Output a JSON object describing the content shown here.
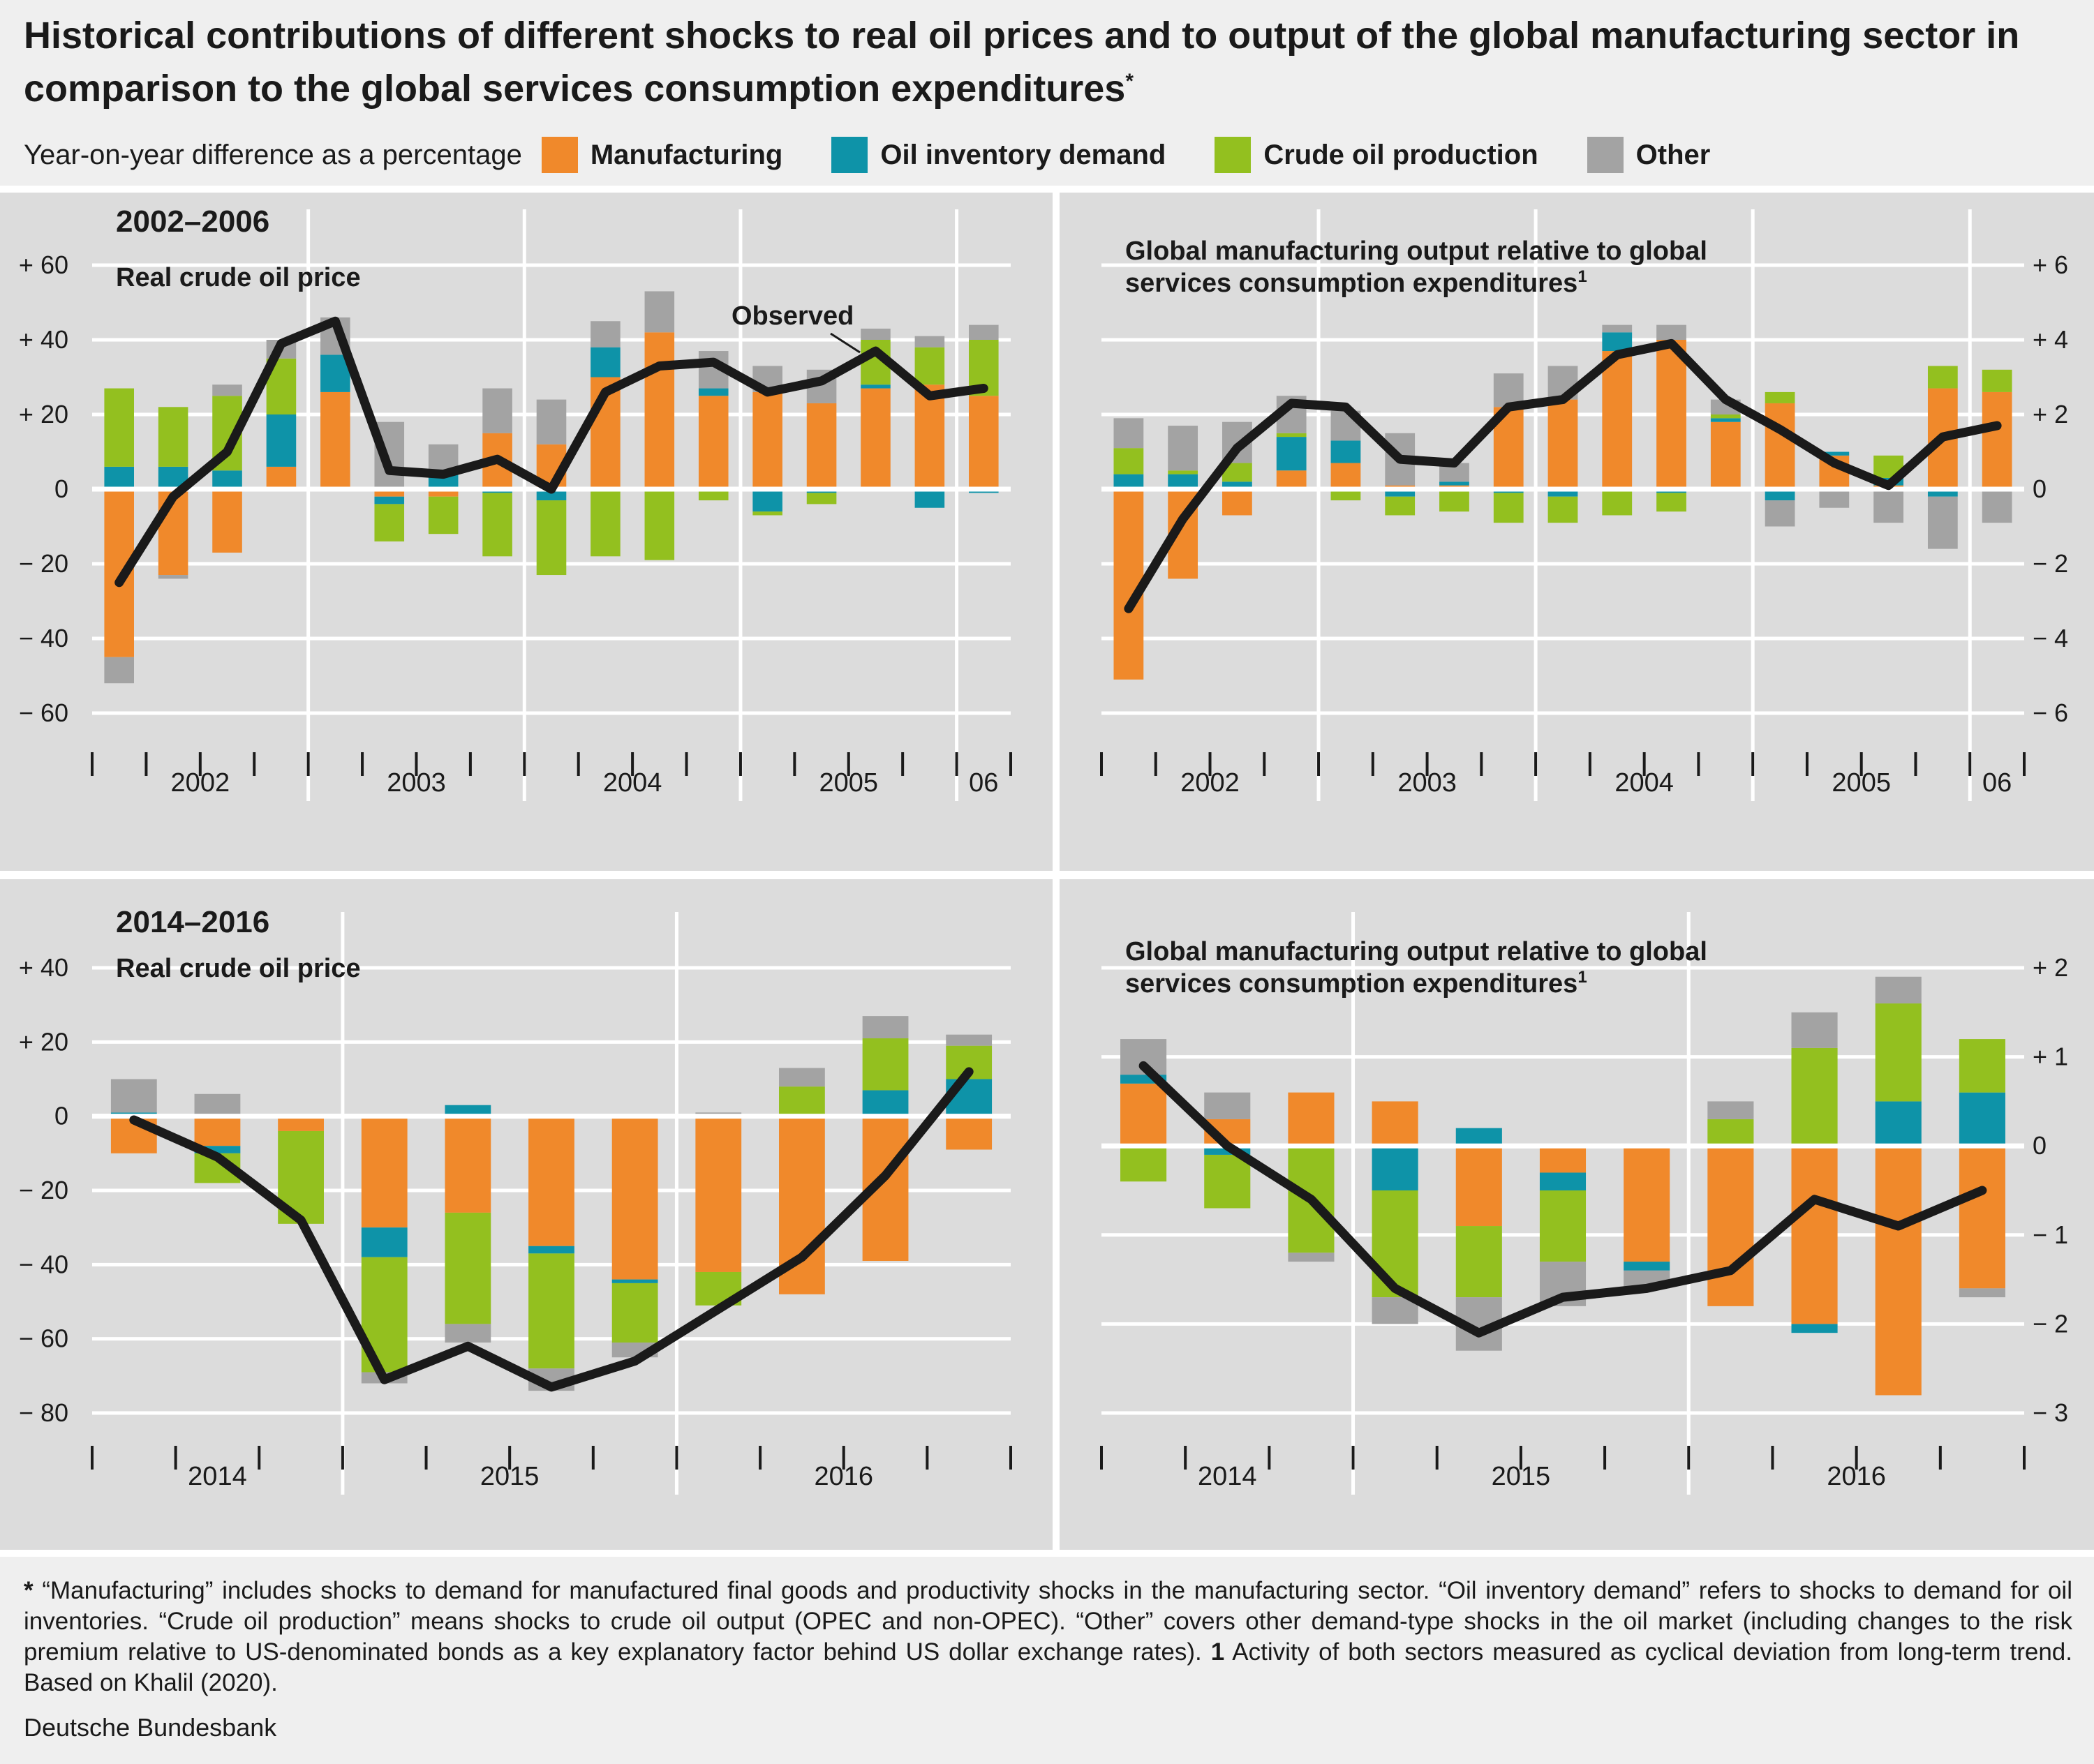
{
  "title": "Historical contributions of different shocks to real oil prices and to output of the global manufacturing sector in comparison to the global services consumption expenditures",
  "title_mark": "*",
  "legend": {
    "lead": "Year-on-year difference as a percentage",
    "items": [
      {
        "label": "Manufacturing",
        "color": "#f0892b"
      },
      {
        "label": "Oil inventory demand",
        "color": "#0e93a8"
      },
      {
        "label": "Crude oil production",
        "color": "#93c01f"
      },
      {
        "label": "Other",
        "color": "#a3a3a3"
      }
    ]
  },
  "footnote": {
    "mark": "*",
    "text1": "“Manufacturing” includes shocks to demand for manufactured final goods and productivity shocks in the manufacturing sector. “Oil inventory demand” refers to shocks to demand for oil inventories. “Crude oil production” means shocks to crude oil output (OPEC and non-OPEC). “Other” covers other demand-type shocks in the oil market (in­cluding changes to the risk premium relative to US-denominated bonds as a key explanatory factor behind US dollar exchange rates).",
    "mark2": "1",
    "text2": "Activity of both sectors measured as cyclical deviation from long-term trend. Based on Khalil (2020)."
  },
  "source": "Deutsche Bundesbank",
  "colors": {
    "Manufacturing": "#f0892b",
    "Oil inventory demand": "#0e93a8",
    "Crude oil production": "#93c01f",
    "Other": "#a3a3a3",
    "Observed": "#1a1a1a",
    "panel": "#dcdcdc"
  },
  "chart_data": [
    {
      "type": "bar",
      "stacked": true,
      "period": "2002–2006",
      "title": "Real crude oil price",
      "annotation": "Observed",
      "yaxis_side": "left",
      "ylim": [
        -60,
        60
      ],
      "yticks": [
        60,
        40,
        20,
        0,
        -20,
        -40,
        -60
      ],
      "ytick_labels": [
        "+ 60",
        "+ 40",
        "+ 20",
        "0",
        "− 20",
        "− 40",
        "− 60"
      ],
      "year_labels": [
        "2002",
        "2003",
        "2004",
        "2005",
        "06"
      ],
      "year_group_sizes": [
        4,
        4,
        4,
        4,
        1
      ],
      "categories": [
        "2002 Q1",
        "2002 Q2",
        "2002 Q3",
        "2002 Q4",
        "2003 Q1",
        "2003 Q2",
        "2003 Q3",
        "2003 Q4",
        "2004 Q1",
        "2004 Q2",
        "2004 Q3",
        "2004 Q4",
        "2005 Q1",
        "2005 Q2",
        "2005 Q3",
        "2005 Q4",
        "2006 Q1"
      ],
      "series": [
        {
          "name": "Manufacturing",
          "values": [
            -45,
            -23,
            -17,
            6,
            26,
            -2,
            -2,
            15,
            12,
            30,
            42,
            25,
            26,
            23,
            27,
            28,
            25
          ]
        },
        {
          "name": "Oil inventory demand",
          "values": [
            6,
            6,
            5,
            14,
            10,
            -2,
            4,
            -1,
            -3,
            8,
            0,
            2,
            -6,
            -1,
            1,
            -5,
            -1
          ]
        },
        {
          "name": "Crude oil production",
          "values": [
            21,
            16,
            20,
            15,
            0,
            -10,
            -10,
            -17,
            -20,
            -18,
            -19,
            -3,
            -1,
            -3,
            12,
            10,
            15
          ]
        },
        {
          "name": "Other",
          "values": [
            -7,
            -1,
            3,
            5,
            10,
            18,
            8,
            12,
            12,
            7,
            11,
            10,
            7,
            9,
            3,
            3,
            4
          ]
        }
      ],
      "observed": [
        -25,
        -2,
        10,
        39,
        45,
        5,
        4,
        8,
        0,
        26,
        33,
        34,
        26,
        29,
        37,
        25,
        27
      ]
    },
    {
      "type": "bar",
      "stacked": true,
      "period": "2002–2006",
      "title": "Global manufacturing output relative to global services consumption expenditures",
      "title_mark": "1",
      "yaxis_side": "right",
      "ylim": [
        -6,
        6
      ],
      "yticks": [
        6,
        4,
        2,
        0,
        -2,
        -4,
        -6
      ],
      "ytick_labels": [
        "+ 6",
        "+ 4",
        "+ 2",
        "0",
        "− 2",
        "− 4",
        "− 6"
      ],
      "year_labels": [
        "2002",
        "2003",
        "2004",
        "2005",
        "06"
      ],
      "year_group_sizes": [
        4,
        4,
        4,
        4,
        1
      ],
      "categories": [
        "2002 Q1",
        "2002 Q2",
        "2002 Q3",
        "2002 Q4",
        "2003 Q1",
        "2003 Q2",
        "2003 Q3",
        "2003 Q4",
        "2004 Q1",
        "2004 Q2",
        "2004 Q3",
        "2004 Q4",
        "2005 Q1",
        "2005 Q2",
        "2005 Q3",
        "2005 Q4",
        "2006 Q1"
      ],
      "series": [
        {
          "name": "Manufacturing",
          "values": [
            -5.1,
            -2.4,
            -0.7,
            0.5,
            0.7,
            0.1,
            0.1,
            2.2,
            2.4,
            3.7,
            4.0,
            1.8,
            2.3,
            0.9,
            0.1,
            2.7,
            2.6
          ]
        },
        {
          "name": "Oil inventory demand",
          "values": [
            0.4,
            0.4,
            0.2,
            0.9,
            0.6,
            -0.2,
            0.1,
            -0.1,
            -0.2,
            0.5,
            -0.1,
            0.1,
            -0.3,
            0.1,
            0.2,
            -0.2,
            0
          ]
        },
        {
          "name": "Crude oil production",
          "values": [
            0.7,
            0.1,
            0.5,
            0.1,
            -0.3,
            -0.5,
            -0.6,
            -0.8,
            -0.7,
            -0.7,
            -0.5,
            0.1,
            0.3,
            0,
            0.6,
            0.6,
            0.6
          ]
        },
        {
          "name": "Other",
          "values": [
            0.8,
            1.2,
            1.1,
            1.0,
            0.8,
            1.4,
            0.5,
            0.9,
            0.9,
            0.2,
            0.4,
            0.4,
            -0.7,
            -0.5,
            -0.9,
            -1.4,
            -0.9
          ]
        }
      ],
      "observed": [
        -3.2,
        -0.8,
        1.1,
        2.3,
        2.2,
        0.8,
        0.7,
        2.2,
        2.4,
        3.6,
        3.9,
        2.4,
        1.6,
        0.7,
        0.1,
        1.4,
        1.7
      ]
    },
    {
      "type": "bar",
      "stacked": true,
      "period": "2014–2016",
      "title": "Real crude oil price",
      "yaxis_side": "left",
      "ylim": [
        -80,
        40
      ],
      "yticks": [
        40,
        20,
        0,
        -20,
        -40,
        -60,
        -80
      ],
      "ytick_labels": [
        "+ 40",
        "+ 20",
        "0",
        "− 20",
        "− 40",
        "− 60",
        "− 80"
      ],
      "year_labels": [
        "2014",
        "2015",
        "2016"
      ],
      "year_group_sizes": [
        3,
        4,
        4
      ],
      "categories": [
        "2014 Q2",
        "2014 Q3",
        "2014 Q4",
        "2015 Q1",
        "2015 Q2",
        "2015 Q3",
        "2015 Q4",
        "2016 Q1",
        "2016 Q2",
        "2016 Q3",
        "2016 Q4"
      ],
      "series": [
        {
          "name": "Manufacturing",
          "values": [
            -10,
            -8,
            -4,
            -30,
            -26,
            -35,
            -44,
            -42,
            -48,
            -39,
            -9
          ]
        },
        {
          "name": "Oil inventory demand",
          "values": [
            1,
            -2,
            0,
            -8,
            3,
            -2,
            -1,
            0,
            0,
            7,
            10
          ]
        },
        {
          "name": "Crude oil production",
          "values": [
            0,
            -8,
            -25,
            -31,
            -30,
            -31,
            -16,
            -9,
            8,
            14,
            9
          ]
        },
        {
          "name": "Other",
          "values": [
            9,
            6,
            0,
            -3,
            -5,
            -6,
            -4,
            1,
            5,
            6,
            3
          ]
        }
      ],
      "observed": [
        -1,
        -11,
        -28,
        -71,
        -62,
        -73,
        -66,
        -52,
        -38,
        -16,
        12
      ]
    },
    {
      "type": "bar",
      "stacked": true,
      "period": "2014–2016",
      "title": "Global manufacturing output relative to global services consumption expenditures",
      "title_mark": "1",
      "yaxis_side": "right",
      "ylim": [
        -3,
        2
      ],
      "yticks": [
        2,
        1,
        0,
        -1,
        -2,
        -3
      ],
      "ytick_labels": [
        "+ 2",
        "+ 1",
        "0",
        "− 1",
        "− 2",
        "− 3"
      ],
      "year_labels": [
        "2014",
        "2015",
        "2016"
      ],
      "year_group_sizes": [
        3,
        4,
        4
      ],
      "categories": [
        "2014 Q2",
        "2014 Q3",
        "2014 Q4",
        "2015 Q1",
        "2015 Q2",
        "2015 Q3",
        "2015 Q4",
        "2016 Q1",
        "2016 Q2",
        "2016 Q3",
        "2016 Q4"
      ],
      "series": [
        {
          "name": "Manufacturing",
          "values": [
            0.7,
            0.3,
            0.6,
            0.5,
            -0.9,
            -0.3,
            -1.3,
            -1.8,
            -2.0,
            -2.8,
            -1.6
          ]
        },
        {
          "name": "Oil inventory demand",
          "values": [
            0.1,
            -0.1,
            0,
            -0.5,
            0.2,
            -0.2,
            -0.1,
            0,
            -0.1,
            0.5,
            0.6
          ]
        },
        {
          "name": "Crude oil production",
          "values": [
            -0.4,
            -0.6,
            -1.2,
            -1.2,
            -0.8,
            -0.8,
            0,
            0.3,
            1.1,
            1.1,
            0.6
          ]
        },
        {
          "name": "Other",
          "values": [
            0.4,
            0.3,
            -0.1,
            -0.3,
            -0.6,
            -0.5,
            -0.2,
            0.2,
            0.4,
            0.3,
            -0.1
          ]
        }
      ],
      "observed": [
        0.9,
        0,
        -0.6,
        -1.6,
        -2.1,
        -1.7,
        -1.6,
        -1.4,
        -0.6,
        -0.9,
        -0.5
      ]
    }
  ]
}
